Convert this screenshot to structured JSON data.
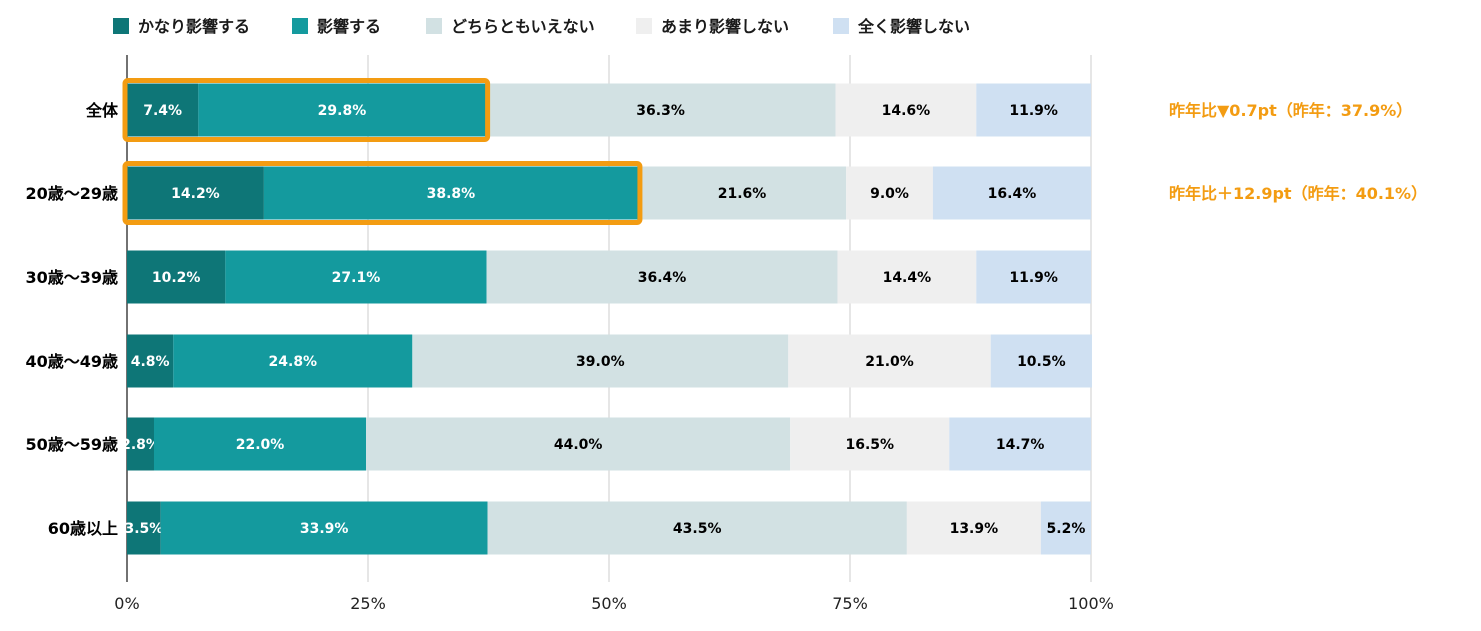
{
  "chart_data": {
    "type": "bar",
    "orientation": "horizontal",
    "stacked": true,
    "categories": [
      "全体",
      "20歳〜29歳",
      "30歳〜39歳",
      "40歳〜49歳",
      "50歳〜59歳",
      "60歳以上"
    ],
    "series": [
      {
        "name": "かなり影響する",
        "color": "#0e7677",
        "label_color": "#ffffff",
        "values": [
          7.4,
          14.2,
          10.2,
          4.8,
          2.8,
          3.5
        ]
      },
      {
        "name": "影響する",
        "color": "#149a9e",
        "label_color": "#ffffff",
        "values": [
          29.8,
          38.8,
          27.1,
          24.8,
          22.0,
          33.9
        ]
      },
      {
        "name": "どちらともいえない",
        "color": "#d2e1e3",
        "label_color": "#000000",
        "values": [
          36.3,
          21.6,
          36.4,
          39.0,
          44.0,
          43.5
        ]
      },
      {
        "name": "あまり影響しない",
        "color": "#efefef",
        "label_color": "#000000",
        "values": [
          14.6,
          9.0,
          14.4,
          21.0,
          16.5,
          13.9
        ]
      },
      {
        "name": "全く影響しない",
        "color": "#cfe0f2",
        "label_color": "#000000",
        "values": [
          11.9,
          16.4,
          11.9,
          10.5,
          14.7,
          5.2
        ]
      }
    ],
    "xlim": [
      0,
      100
    ],
    "xticks": [
      "0%",
      "25%",
      "50%",
      "75%",
      "100%"
    ],
    "grid": true,
    "legend_position": "top-left",
    "highlight": {
      "categories": [
        "全体",
        "20歳〜29歳"
      ],
      "series": [
        "かなり影響する",
        "影響する"
      ],
      "color": "#f39c12"
    },
    "annotations": [
      {
        "category": "全体",
        "text": "昨年比▼0.7pt（昨年：37.9%）"
      },
      {
        "category": "20歳〜29歳",
        "text": "昨年比＋12.9pt（昨年：40.1%）"
      }
    ]
  }
}
